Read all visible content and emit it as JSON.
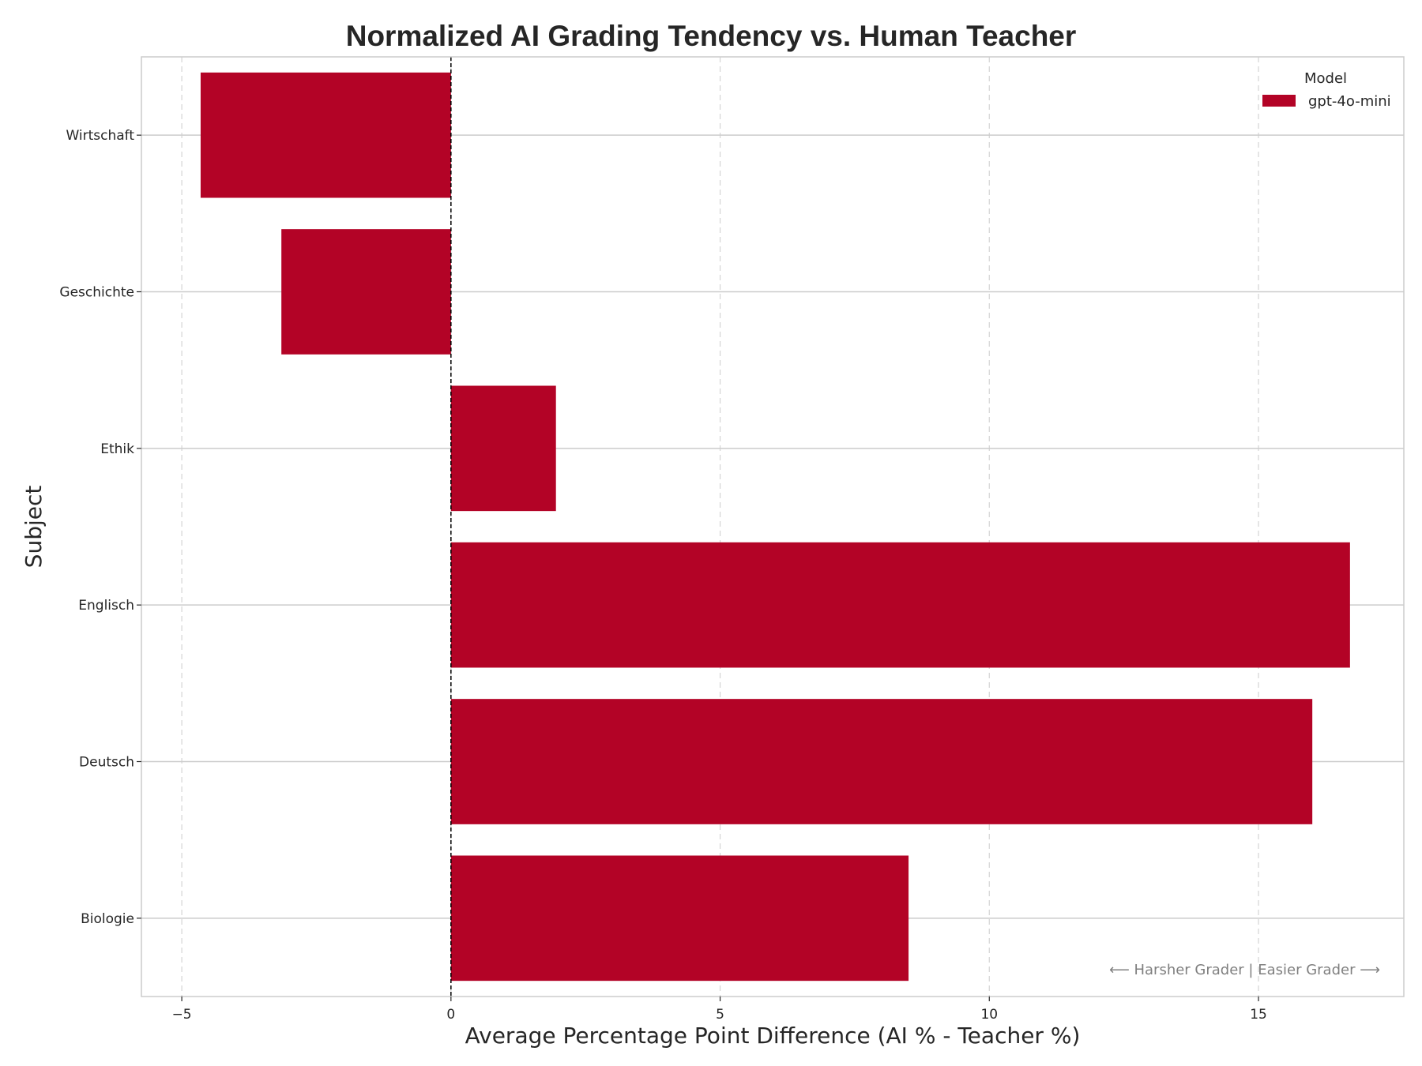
{
  "chart_data": {
    "type": "bar",
    "orientation": "horizontal",
    "title": "Normalized AI Grading Tendency vs. Human Teacher",
    "xlabel": "Average Percentage Point Difference (AI % - Teacher %)",
    "ylabel": "Subject",
    "categories": [
      "Biologie",
      "Deutsch",
      "Englisch",
      "Ethik",
      "Geschichte",
      "Wirtschaft"
    ],
    "series": [
      {
        "name": "gpt-4o-mini",
        "values": [
          8.5,
          16.0,
          16.7,
          1.95,
          -3.15,
          -4.65
        ],
        "color": "#b30326"
      }
    ],
    "xlim": [
      -5.75,
      17.7
    ],
    "xticks": [
      -5,
      0,
      5,
      10,
      15
    ],
    "xtick_labels": [
      "−5",
      "0",
      "5",
      "10",
      "15"
    ],
    "reference_line": {
      "x": 0,
      "style": "dashed",
      "color": "#000000"
    },
    "grid": true,
    "legend": {
      "title": "Model",
      "position": "top-right"
    },
    "annotation": "⟵ Harsher Grader | Easier Grader ⟶"
  }
}
